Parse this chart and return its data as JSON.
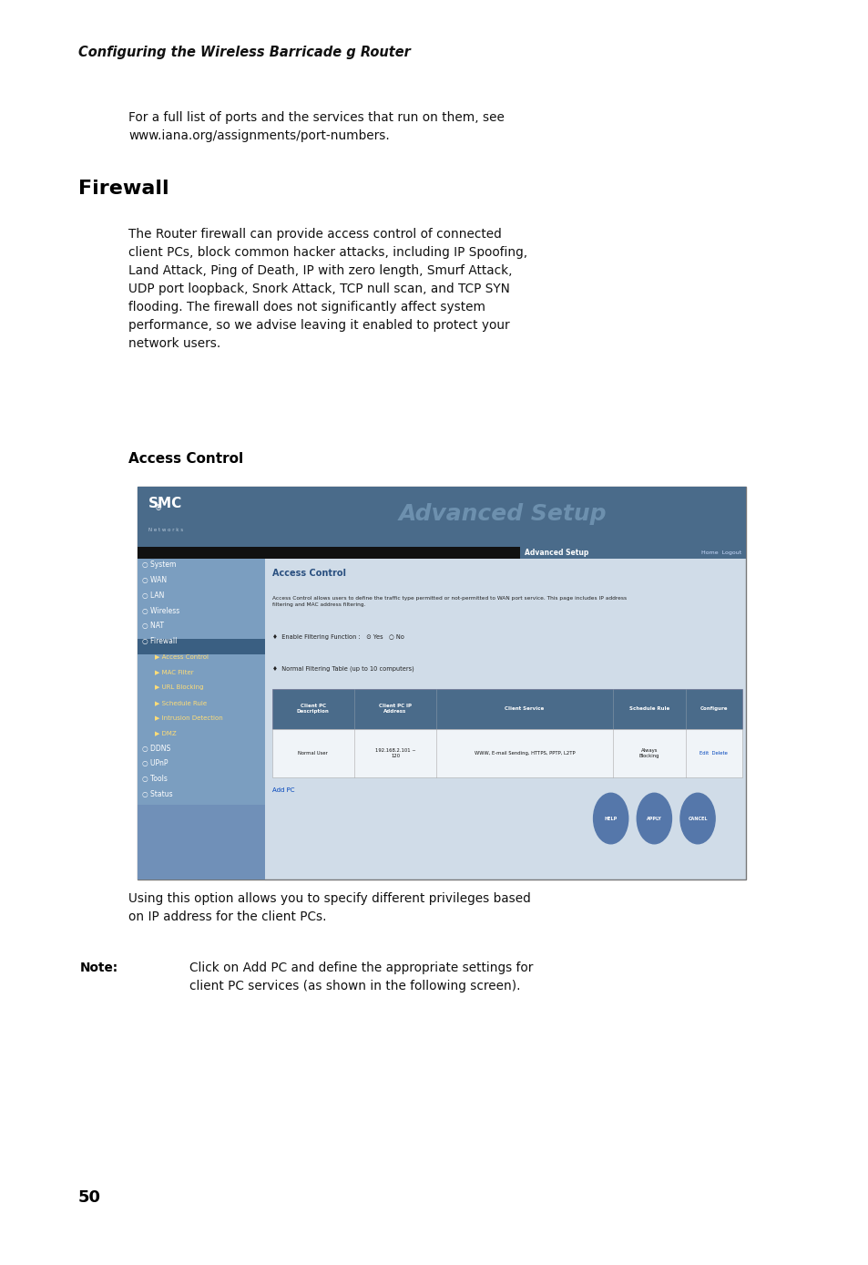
{
  "bg_color": "#ffffff",
  "page_width": 9.54,
  "page_height": 13.88,
  "header_italic": "Configuring the Wireless Barricade g Router",
  "intro_text": "For a full list of ports and the services that run on them, see\nwww.iana.org/assignments/port-numbers.",
  "section_title": "Firewall",
  "body_text": "The Router firewall can provide access control of connected\nclient PCs, block common hacker attacks, including IP Spoofing,\nLand Attack, Ping of Death, IP with zero length, Smurf Attack,\nUDP port loopback, Snork Attack, TCP null scan, and TCP SYN\nflooding. The firewall does not significantly affect system\nperformance, so we advise leaving it enabled to protect your\nnetwork users.",
  "subsection_title": "Access Control",
  "after_text": "Using this option allows you to specify different privileges based\non IP address for the client PCs.",
  "note_label": "Note:",
  "note_text": "Click on Add PC and define the appropriate settings for\nclient PC services (as shown in the following screen).",
  "page_num": "50",
  "smc_header_color": "#4a6b8a",
  "smc_sidebar_color": "#7b9ec0",
  "smc_content_bg": "#d0dce8",
  "smc_firewall_row": "#3a5f82",
  "smc_table_header": "#4a6b8a"
}
